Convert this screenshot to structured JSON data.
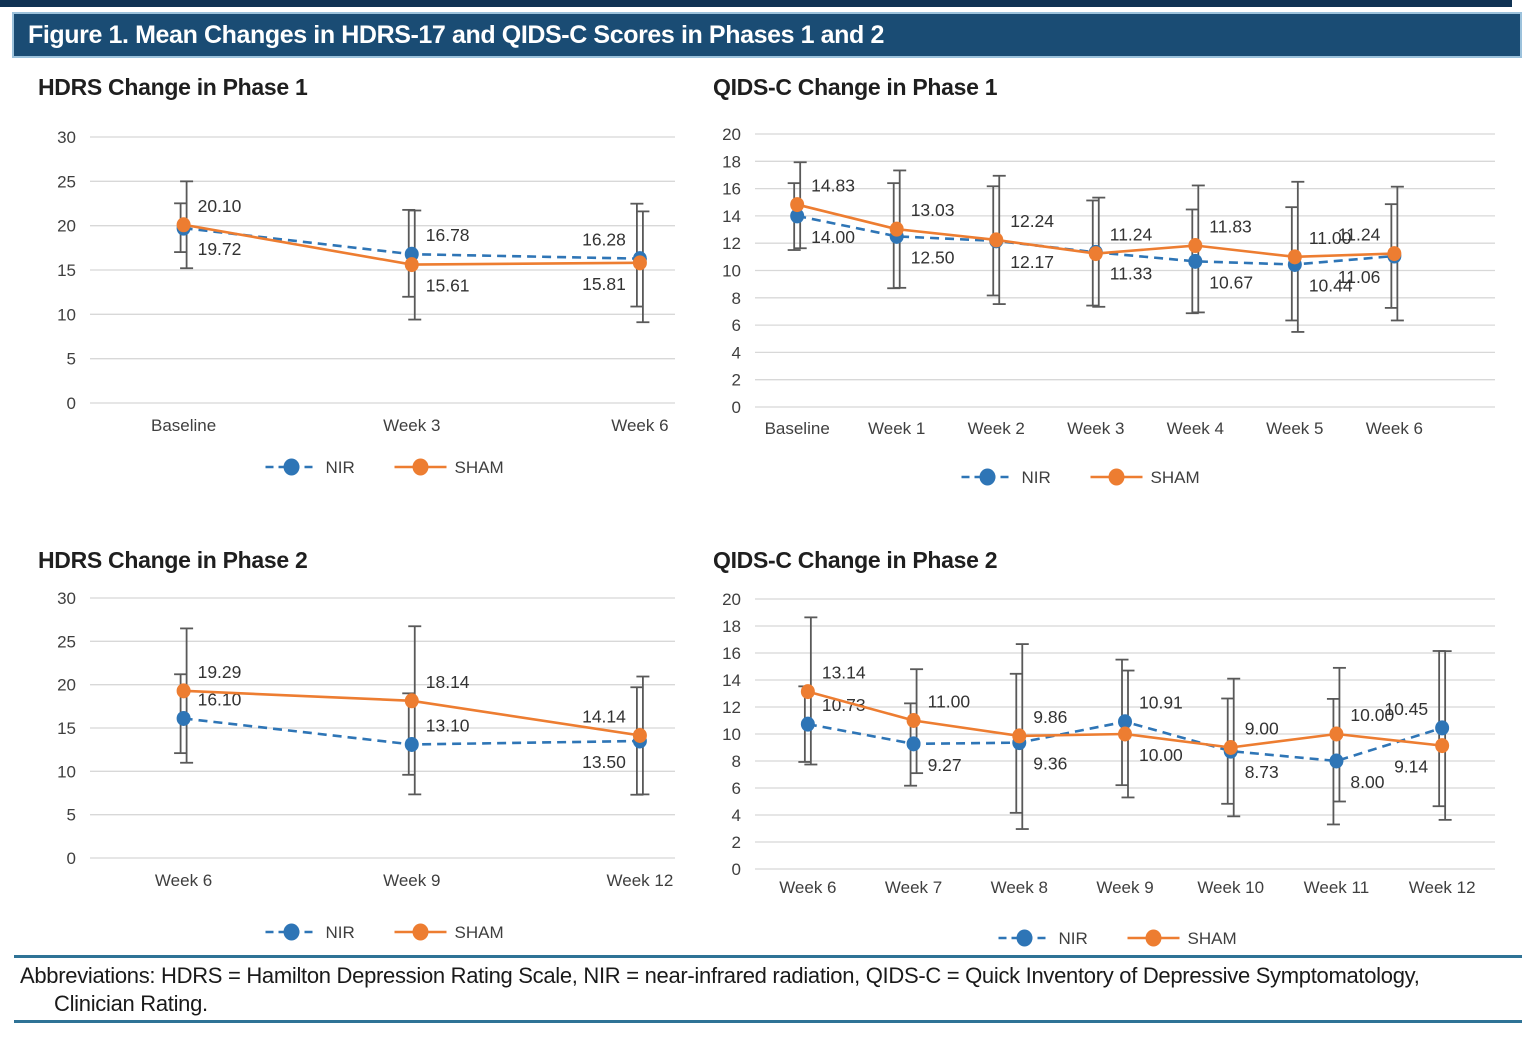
{
  "page": {
    "figure_title": "Figure 1. Mean Changes in HDRS-17 and QIDS-C Scores in Phases 1 and 2",
    "footer_line1": "Abbreviations: HDRS = Hamilton Depression Rating Scale, NIR = near-infrared radiation, QIDS-C = Quick Inventory of Depressive Symptomatology,",
    "footer_line2": "Clinician Rating."
  },
  "colors": {
    "accent_bar": "#0F3253",
    "title_bar_bg": "#1A4C74",
    "title_bar_border": "#9CC2DC",
    "title_text": "#FFFFFF",
    "nir": "#2E75B6",
    "sham": "#ED7D31",
    "error_bar": "#595959",
    "grid": "#D8D8D8",
    "tick_text": "#3F3F3F",
    "footer_rule": "#2F7396"
  },
  "chart_data": [
    {
      "type": "line",
      "title": "HDRS Change in Phase 1",
      "categories": [
        "Baseline",
        "Week 3",
        "Week 6"
      ],
      "ylim": [
        0,
        30
      ],
      "ystep": 5,
      "grid": true,
      "legend_position": "bottom",
      "series": [
        {
          "name": "NIR",
          "color": "#2E75B6",
          "dash": true,
          "values": [
            19.72,
            16.78,
            16.28
          ],
          "err_dn": [
            2.7,
            4.8,
            5.4
          ],
          "err_up": [
            2.8,
            5.0,
            6.2
          ],
          "label_side": [
            "below",
            "above",
            "above"
          ]
        },
        {
          "name": "SHAM",
          "color": "#ED7D31",
          "dash": false,
          "values": [
            20.1,
            15.61,
            15.81
          ],
          "err_dn": [
            4.9,
            6.2,
            6.7
          ],
          "err_up": [
            4.9,
            6.1,
            5.8
          ],
          "label_side": [
            "above",
            "below",
            "below"
          ]
        }
      ]
    },
    {
      "type": "line",
      "title": "QIDS-C Change in Phase 1",
      "categories": [
        "Baseline",
        "Week 1",
        "Week 2",
        "Week 3",
        "Week 4",
        "Week 5",
        "Week 6"
      ],
      "ylim": [
        0,
        20
      ],
      "ystep": 2,
      "grid": true,
      "legend_position": "bottom",
      "series": [
        {
          "name": "NIR",
          "color": "#2E75B6",
          "dash": true,
          "values": [
            14.0,
            12.5,
            12.17,
            11.33,
            10.67,
            10.44,
            11.06
          ],
          "err_dn": [
            2.5,
            3.8,
            4.0,
            3.9,
            3.8,
            4.1,
            3.8
          ],
          "err_up": [
            2.4,
            3.9,
            4.0,
            3.8,
            3.8,
            4.2,
            3.8
          ],
          "label_side": [
            "below",
            "below",
            "below",
            "below",
            "below",
            "below",
            "below"
          ]
        },
        {
          "name": "SHAM",
          "color": "#ED7D31",
          "dash": false,
          "values": [
            14.83,
            13.03,
            12.24,
            11.24,
            11.83,
            11.0,
            11.24
          ],
          "err_dn": [
            3.2,
            4.3,
            4.7,
            3.9,
            4.9,
            5.5,
            4.9
          ],
          "err_up": [
            3.1,
            4.3,
            4.7,
            4.1,
            4.4,
            5.5,
            4.9
          ],
          "label_side": [
            "above",
            "above",
            "above",
            "above",
            "above",
            "above",
            "above"
          ]
        }
      ]
    },
    {
      "type": "line",
      "title": "HDRS Change in Phase 2",
      "categories": [
        "Week 6",
        "Week 9",
        "Week 12"
      ],
      "ylim": [
        0,
        30
      ],
      "ystep": 5,
      "grid": true,
      "legend_position": "bottom",
      "series": [
        {
          "name": "NIR",
          "color": "#2E75B6",
          "dash": true,
          "values": [
            16.1,
            13.1,
            13.5
          ],
          "err_dn": [
            4.0,
            3.5,
            6.2
          ],
          "err_up": [
            5.1,
            5.9,
            6.2
          ],
          "label_side": [
            "above",
            "above",
            "below"
          ]
        },
        {
          "name": "SHAM",
          "color": "#ED7D31",
          "dash": false,
          "values": [
            19.29,
            18.14,
            14.14
          ],
          "err_dn": [
            8.3,
            10.8,
            6.8
          ],
          "err_up": [
            7.2,
            8.6,
            6.8
          ],
          "label_side": [
            "above",
            "above",
            "above"
          ]
        }
      ]
    },
    {
      "type": "line",
      "title": "QIDS-C Change in Phase 2",
      "categories": [
        "Week 6",
        "Week 7",
        "Week 8",
        "Week 9",
        "Week 10",
        "Week 11",
        "Week 12"
      ],
      "ylim": [
        0,
        20
      ],
      "ystep": 2,
      "grid": true,
      "legend_position": "bottom",
      "series": [
        {
          "name": "NIR",
          "color": "#2E75B6",
          "dash": true,
          "values": [
            10.73,
            9.27,
            9.36,
            10.91,
            8.73,
            8.0,
            10.45
          ],
          "err_dn": [
            2.8,
            3.1,
            5.2,
            4.7,
            3.9,
            4.7,
            5.8
          ],
          "err_up": [
            2.8,
            3.0,
            5.1,
            4.6,
            3.9,
            4.6,
            5.7
          ],
          "label_side": [
            "above",
            "below",
            "below",
            "above",
            "below",
            "below",
            "above"
          ]
        },
        {
          "name": "SHAM",
          "color": "#ED7D31",
          "dash": false,
          "values": [
            13.14,
            11.0,
            9.86,
            10.0,
            9.0,
            10.0,
            9.14
          ],
          "err_dn": [
            5.4,
            3.9,
            6.9,
            4.7,
            5.1,
            5.0,
            5.5
          ],
          "err_up": [
            5.5,
            3.8,
            6.8,
            4.7,
            5.1,
            4.9,
            7.0
          ],
          "label_side": [
            "above",
            "above",
            "above",
            "below",
            "above",
            "above",
            "below"
          ]
        }
      ]
    }
  ]
}
